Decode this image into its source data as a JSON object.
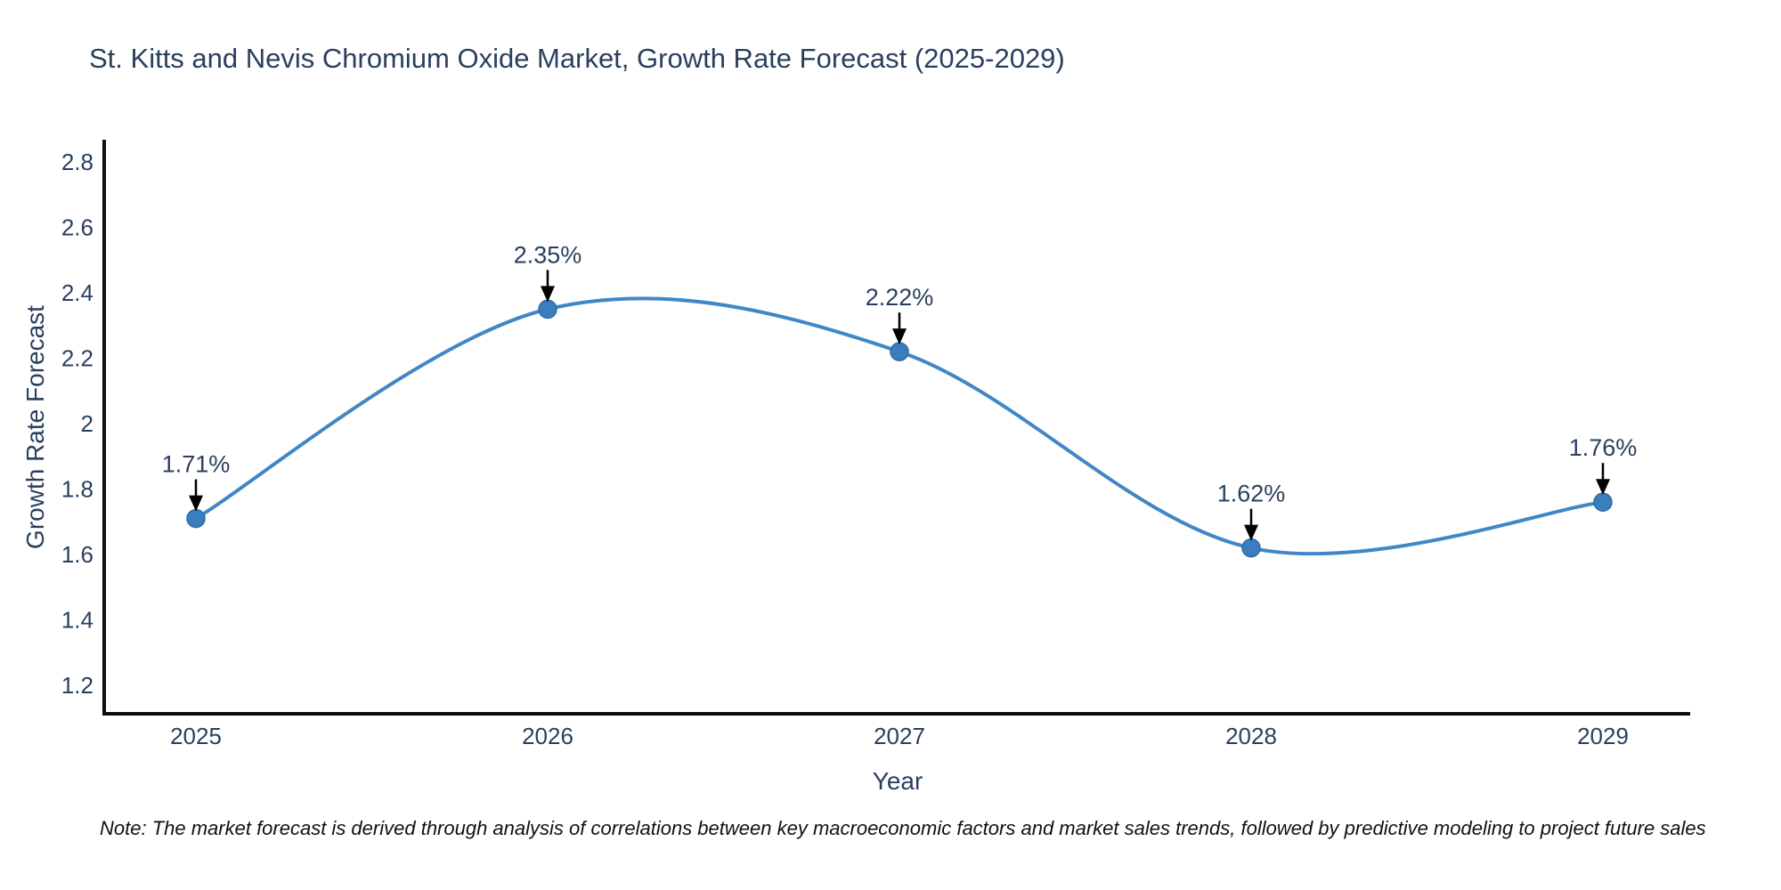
{
  "page": {
    "background": "#ffffff"
  },
  "chart": {
    "title": "St. Kitts and Nevis Chromium Oxide Market, Growth Rate Forecast (2025-2029)",
    "note": "Note: The market forecast is derived through analysis of correlations between key macroeconomic factors and market sales trends, followed by predictive modeling to project future sales",
    "colors": {
      "line": "#4187c5",
      "marker": "#3a7ebd",
      "marker_edge": "#2f6ba8",
      "axis": "#0d0d0d",
      "text": "#2a3f5f",
      "annotation_arrow": "#000000",
      "note_text": "#111111"
    }
  },
  "chart_data": {
    "type": "line",
    "title": "St. Kitts and Nevis Chromium Oxide Market, Growth Rate Forecast (2025-2029)",
    "xlabel": "Year",
    "ylabel": "Growth Rate Forecast",
    "x": [
      2025,
      2026,
      2027,
      2028,
      2029
    ],
    "values": [
      1.71,
      2.35,
      2.22,
      1.62,
      1.76
    ],
    "point_labels": [
      "1.71%",
      "2.35%",
      "2.22%",
      "1.62%",
      "1.76%"
    ],
    "x_tick_labels": [
      "2025",
      "2026",
      "2027",
      "2028",
      "2029"
    ],
    "y_tick_labels": [
      "2.8",
      "2.6",
      "2.4",
      "2.2",
      "2",
      "1.8",
      "1.6",
      "1.4",
      "1.2"
    ],
    "y_tick_values": [
      2.8,
      2.6,
      2.4,
      2.2,
      2.0,
      1.8,
      1.6,
      1.4,
      1.2
    ],
    "ylim_ticks": [
      1.2,
      2.8
    ],
    "line_shape": "spline",
    "grid": false,
    "legend": "none"
  }
}
